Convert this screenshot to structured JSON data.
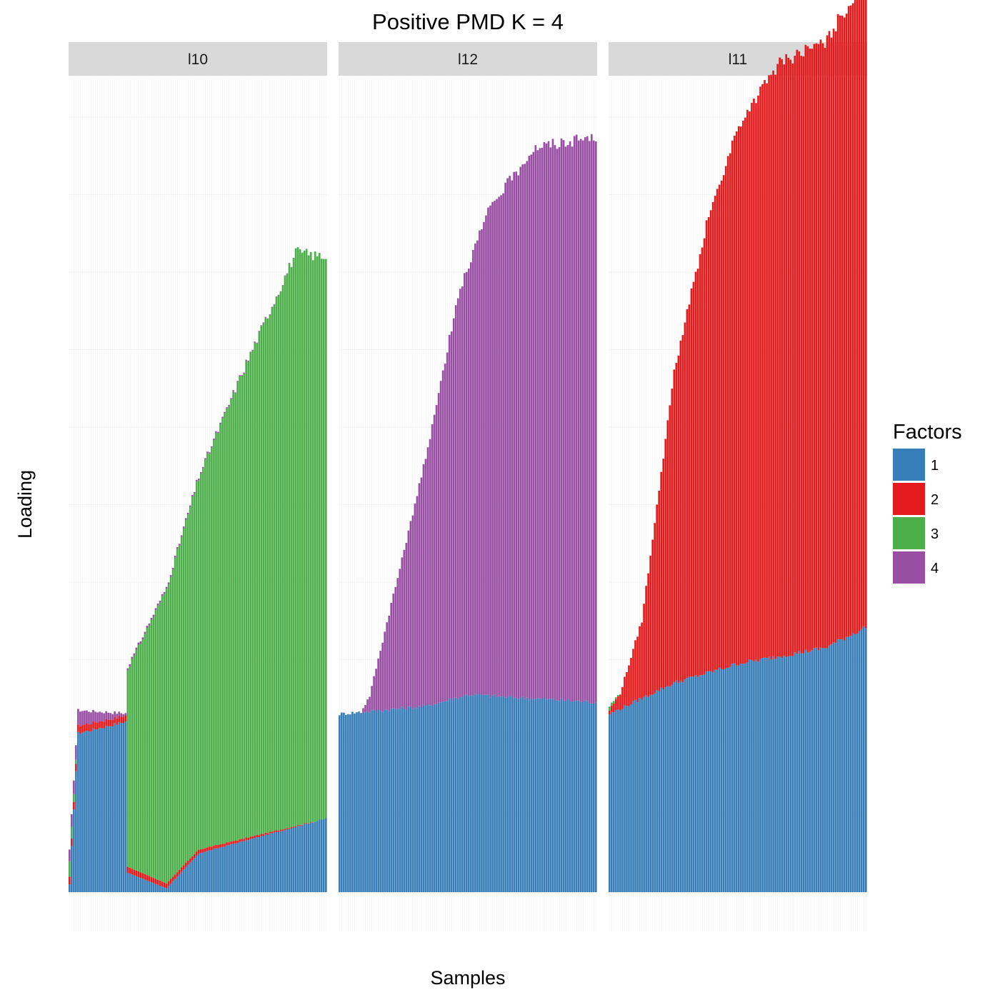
{
  "chart_data": {
    "type": "bar",
    "stacked": true,
    "title": "Positive PMD K = 4",
    "xlabel": "Samples",
    "ylabel": "Loading",
    "ylim": [
      0,
      10
    ],
    "grid": true,
    "x_ticks_shown": false,
    "y_ticks_shown": false,
    "legend": {
      "title": "Factors",
      "position": "right",
      "entries": [
        {
          "label": "1",
          "color": "#377EB8"
        },
        {
          "label": "2",
          "color": "#E41A1C"
        },
        {
          "label": "3",
          "color": "#4DAF4A"
        },
        {
          "label": "4",
          "color": "#984EA3"
        }
      ]
    },
    "panels": [
      {
        "label": "l10",
        "n_samples": 120,
        "series": [
          {
            "name": "1",
            "color": "#377EB8",
            "profile": [
              [
                0,
                0.1
              ],
              [
                4,
                2.05
              ],
              [
                26,
                2.2
              ],
              [
                27,
                0.25
              ],
              [
                45,
                0.05
              ],
              [
                60,
                0.5
              ],
              [
                119,
                0.95
              ]
            ]
          },
          {
            "name": "2",
            "color": "#E41A1C",
            "profile": [
              [
                0,
                0.1
              ],
              [
                119,
                0.0
              ]
            ]
          },
          {
            "name": "3",
            "color": "#4DAF4A",
            "profile": [
              [
                0,
                0.2
              ],
              [
                4,
                0.0
              ],
              [
                26,
                0.0
              ],
              [
                27,
                2.55
              ],
              [
                45,
                3.8
              ],
              [
                60,
                4.8
              ],
              [
                80,
                6.0
              ],
              [
                105,
                7.4
              ],
              [
                119,
                7.25
              ]
            ]
          },
          {
            "name": "4",
            "color": "#984EA3",
            "profile": [
              [
                0,
                0.15
              ],
              [
                4,
                0.2
              ],
              [
                26,
                0.03
              ],
              [
                119,
                0.0
              ]
            ]
          }
        ]
      },
      {
        "label": "l12",
        "n_samples": 120,
        "series": [
          {
            "name": "1",
            "color": "#377EB8",
            "profile": [
              [
                0,
                2.3
              ],
              [
                40,
                2.4
              ],
              [
                60,
                2.55
              ],
              [
                119,
                2.45
              ]
            ]
          },
          {
            "name": "2",
            "color": "#E41A1C",
            "profile": [
              [
                0,
                0.0
              ],
              [
                119,
                0.0
              ]
            ]
          },
          {
            "name": "3",
            "color": "#4DAF4A",
            "profile": [
              [
                0,
                0.0
              ],
              [
                119,
                0.0
              ]
            ]
          },
          {
            "name": "4",
            "color": "#984EA3",
            "profile": [
              [
                0,
                0.0
              ],
              [
                10,
                0.0
              ],
              [
                14,
                0.2
              ],
              [
                40,
                3.2
              ],
              [
                55,
                5.2
              ],
              [
                70,
                6.3
              ],
              [
                90,
                7.1
              ],
              [
                119,
                7.3
              ]
            ]
          }
        ]
      },
      {
        "label": "l11",
        "n_samples": 120,
        "series": [
          {
            "name": "1",
            "color": "#377EB8",
            "profile": [
              [
                0,
                2.3
              ],
              [
                30,
                2.7
              ],
              [
                60,
                2.95
              ],
              [
                100,
                3.15
              ],
              [
                119,
                3.42
              ]
            ]
          },
          {
            "name": "2",
            "color": "#E41A1C",
            "profile": [
              [
                0,
                0.05
              ],
              [
                5,
                0.2
              ],
              [
                15,
                1.0
              ],
              [
                30,
                4.0
              ],
              [
                45,
                5.8
              ],
              [
                60,
                6.95
              ],
              [
                80,
                7.7
              ],
              [
                100,
                7.8
              ],
              [
                119,
                8.4
              ]
            ]
          },
          {
            "name": "3",
            "color": "#4DAF4A",
            "profile": [
              [
                0,
                0.05
              ],
              [
                6,
                0.0
              ],
              [
                119,
                0.0
              ]
            ]
          },
          {
            "name": "4",
            "color": "#984EA3",
            "profile": [
              [
                0,
                0.0
              ],
              [
                119,
                0.0
              ]
            ]
          }
        ]
      }
    ]
  }
}
